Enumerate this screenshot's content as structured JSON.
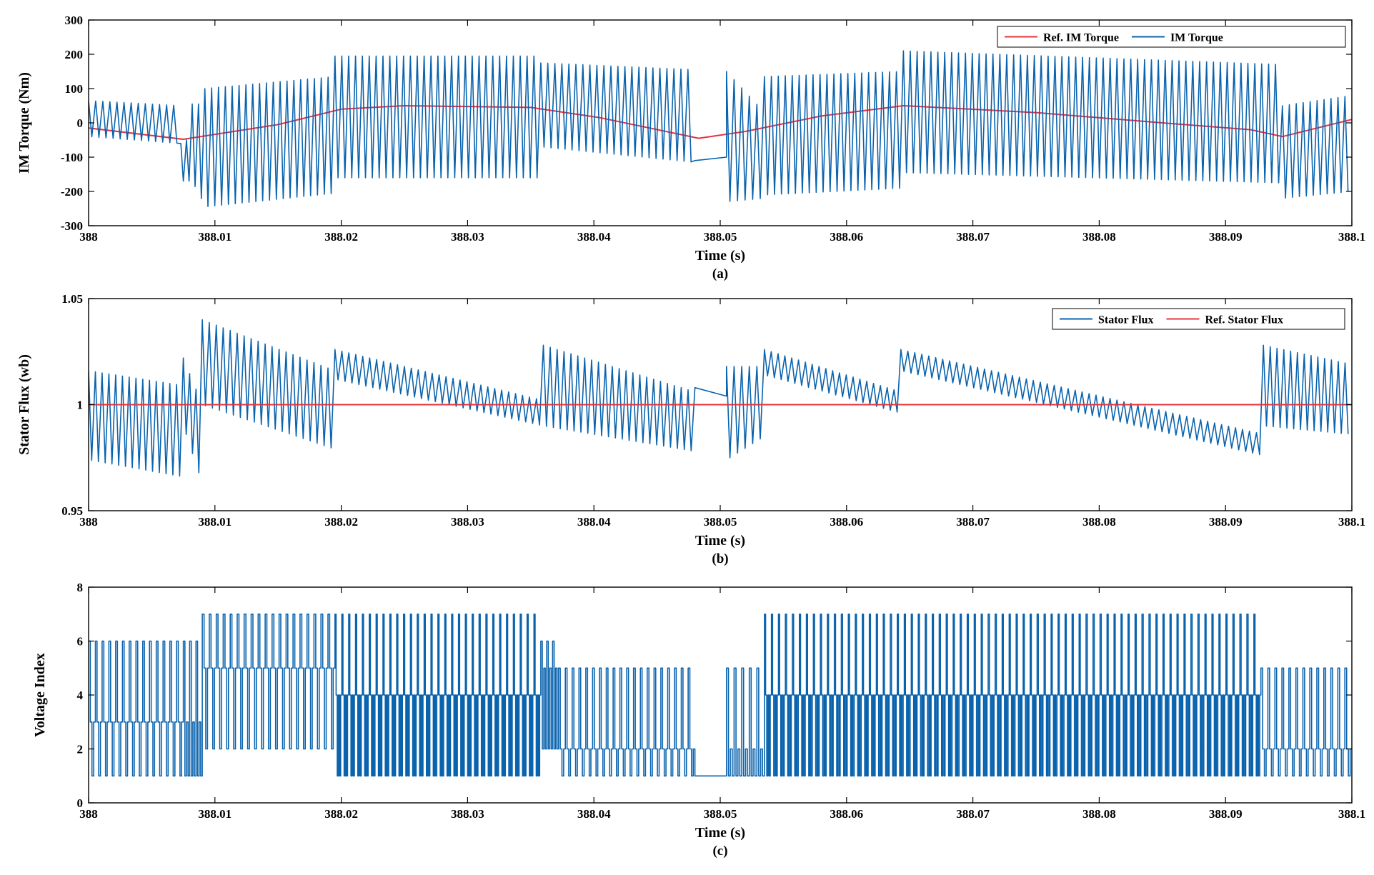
{
  "colors": {
    "blue": "#0a63ad",
    "red": "#e8323c",
    "axis": "#000000",
    "grid": "#dcdcdc"
  },
  "chart_data": [
    {
      "id": "a",
      "type": "line",
      "caption": "(a)",
      "xlabel": "Time (s)",
      "ylabel": "IM Torque (Nm)",
      "xlim": [
        388,
        388.1
      ],
      "ylim": [
        -300,
        300
      ],
      "xticks": [
        388,
        388.01,
        388.02,
        388.03,
        388.04,
        388.05,
        388.06,
        388.07,
        388.08,
        388.09,
        388.1
      ],
      "xtick_labels": [
        "388",
        "388.01",
        "388.02",
        "388.03",
        "388.04",
        "388.05",
        "388.06",
        "388.07",
        "388.08",
        "388.09",
        "388.1"
      ],
      "yticks": [
        -300,
        -200,
        -100,
        0,
        100,
        200,
        300
      ],
      "ytick_labels": [
        "-300",
        "-200",
        "-100",
        "0",
        "100",
        "200",
        "300"
      ],
      "legend": {
        "placement": "top-right",
        "entries": [
          "Ref. IM Torque",
          "IM Torque"
        ]
      },
      "series": [
        {
          "name": "Ref. IM Torque",
          "color": "#e8323c",
          "style": "line",
          "x": [
            388.0,
            388.0075,
            388.015,
            388.02,
            388.025,
            388.035,
            388.0405,
            388.0483,
            388.052,
            388.058,
            388.0645,
            388.075,
            388.085,
            388.092,
            388.0945,
            388.1
          ],
          "y": [
            -15,
            -48,
            -5,
            40,
            50,
            45,
            15,
            -45,
            -25,
            20,
            50,
            30,
            0,
            -20,
            -40,
            10
          ]
        },
        {
          "name": "IM Torque",
          "color": "#0a63ad",
          "style": "oscillation",
          "segments": [
            {
              "t0": 388.0,
              "t1": 388.0073,
              "period": 0.00055,
              "hi0": 65,
              "hi1": 50,
              "lo0": -40,
              "lo1": -60
            },
            {
              "t0": 388.0073,
              "t1": 388.0082,
              "period": 0.0006,
              "hi0": -60,
              "hi1": -40,
              "lo0": -170,
              "lo1": -170
            },
            {
              "t0": 388.0082,
              "t1": 388.0092,
              "period": 0.0006,
              "hi0": 55,
              "hi1": 55,
              "lo0": -170,
              "lo1": -240
            },
            {
              "t0": 388.0092,
              "t1": 388.0195,
              "period": 0.00055,
              "hi0": 100,
              "hi1": 135,
              "lo0": -245,
              "lo1": -205
            },
            {
              "t0": 388.0195,
              "t1": 388.0358,
              "period": 0.00055,
              "hi0": 195,
              "hi1": 195,
              "lo0": -160,
              "lo1": -160
            },
            {
              "t0": 388.0358,
              "t1": 388.048,
              "period": 0.00055,
              "hi0": 175,
              "hi1": 155,
              "lo0": -70,
              "lo1": -115
            },
            {
              "t0": 388.048,
              "t1": 388.0505,
              "period": 0.0025,
              "hi0": -110,
              "hi1": -100,
              "lo0": -110,
              "lo1": -100,
              "flat": true
            },
            {
              "t0": 388.0505,
              "t1": 388.0535,
              "period": 0.0006,
              "hi0": 150,
              "hi1": 30,
              "lo0": -230,
              "lo1": -220
            },
            {
              "t0": 388.0535,
              "t1": 388.0645,
              "period": 0.00055,
              "hi0": 135,
              "hi1": 150,
              "lo0": -210,
              "lo1": -190
            },
            {
              "t0": 388.0645,
              "t1": 388.0945,
              "period": 0.00055,
              "hi0": 210,
              "hi1": 170,
              "lo0": -145,
              "lo1": -175
            },
            {
              "t0": 388.0945,
              "t1": 388.1,
              "period": 0.00055,
              "hi0": 50,
              "hi1": 80,
              "lo0": -220,
              "lo1": -200
            }
          ]
        }
      ]
    },
    {
      "id": "b",
      "type": "line",
      "caption": "(b)",
      "xlabel": "Time (s)",
      "ylabel": "Stator Flux (wb)",
      "xlim": [
        388,
        388.1
      ],
      "ylim": [
        0.95,
        1.05
      ],
      "xticks": [
        388,
        388.01,
        388.02,
        388.03,
        388.04,
        388.05,
        388.06,
        388.07,
        388.08,
        388.09,
        388.1
      ],
      "xtick_labels": [
        "388",
        "388.01",
        "388.02",
        "388.03",
        "388.04",
        "388.05",
        "388.06",
        "388.07",
        "388.08",
        "388.09",
        "388.1"
      ],
      "yticks": [
        0.95,
        1.0,
        1.05
      ],
      "ytick_labels": [
        "0.95",
        "1",
        "1.05"
      ],
      "legend": {
        "placement": "top-right",
        "entries": [
          "Stator Flux",
          "Ref. Stator Flux"
        ]
      },
      "series": [
        {
          "name": "Stator Flux",
          "color": "#0a63ad",
          "style": "oscillation",
          "segments": [
            {
              "t0": 388.0,
              "t1": 388.0075,
              "period": 0.00055,
              "hi0": 1.016,
              "hi1": 1.009,
              "lo0": 0.974,
              "lo1": 0.966
            },
            {
              "t0": 388.0075,
              "t1": 388.009,
              "period": 0.0005,
              "hi0": 1.022,
              "hi1": 1.0,
              "lo0": 0.99,
              "lo1": 0.963
            },
            {
              "t0": 388.009,
              "t1": 388.0195,
              "period": 0.00055,
              "hi0": 1.04,
              "hi1": 1.016,
              "lo0": 1.0,
              "lo1": 0.979
            },
            {
              "t0": 388.0195,
              "t1": 388.036,
              "period": 0.00055,
              "hi0": 1.026,
              "hi1": 1.002,
              "lo0": 1.012,
              "lo1": 0.99
            },
            {
              "t0": 388.036,
              "t1": 388.048,
              "period": 0.00055,
              "hi0": 1.028,
              "hi1": 1.006,
              "lo0": 0.99,
              "lo1": 0.978
            },
            {
              "t0": 388.048,
              "t1": 388.0505,
              "period": 0.0025,
              "hi0": 1.008,
              "hi1": 1.004,
              "lo0": 1.008,
              "lo1": 1.004,
              "flat": true
            },
            {
              "t0": 388.0505,
              "t1": 388.0535,
              "period": 0.0006,
              "hi0": 1.018,
              "hi1": 1.018,
              "lo0": 0.974,
              "lo1": 0.985
            },
            {
              "t0": 388.0535,
              "t1": 388.0643,
              "period": 0.00055,
              "hi0": 1.026,
              "hi1": 1.006,
              "lo0": 1.014,
              "lo1": 0.996
            },
            {
              "t0": 388.0643,
              "t1": 388.093,
              "period": 0.00055,
              "hi0": 1.026,
              "hi1": 0.986,
              "lo0": 1.016,
              "lo1": 0.976
            },
            {
              "t0": 388.093,
              "t1": 388.1,
              "period": 0.00055,
              "hi0": 1.028,
              "hi1": 1.019,
              "lo0": 0.99,
              "lo1": 0.986
            }
          ]
        },
        {
          "name": "Ref. Stator Flux",
          "color": "#e8323c",
          "style": "line",
          "x": [
            388.0,
            388.1
          ],
          "y": [
            1.0,
            1.0
          ]
        }
      ]
    },
    {
      "id": "c",
      "type": "line",
      "caption": "(c)",
      "xlabel": "Time (s)",
      "ylabel": "Voltage Index",
      "xlim": [
        388,
        388.1
      ],
      "ylim": [
        0,
        8
      ],
      "xticks": [
        388,
        388.01,
        388.02,
        388.03,
        388.04,
        388.05,
        388.06,
        388.07,
        388.08,
        388.09,
        388.1
      ],
      "xtick_labels": [
        "388",
        "388.01",
        "388.02",
        "388.03",
        "388.04",
        "388.05",
        "388.06",
        "388.07",
        "388.08",
        "388.09",
        "388.1"
      ],
      "yticks": [
        0,
        2,
        4,
        6,
        8
      ],
      "ytick_labels": [
        "0",
        "2",
        "4",
        "6",
        "8"
      ],
      "legend": null,
      "series": [
        {
          "name": "",
          "color": "#0a63ad",
          "style": "steps",
          "segments": [
            {
              "t0": 388.0,
              "t1": 388.0075,
              "period": 0.00055,
              "levels": [
                6,
                3,
                1,
                3
              ]
            },
            {
              "t0": 388.0075,
              "t1": 388.009,
              "period": 0.0005,
              "levels": [
                6,
                1,
                3,
                1
              ]
            },
            {
              "t0": 388.009,
              "t1": 388.0195,
              "period": 0.00055,
              "levels": [
                7,
                5,
                2,
                5
              ]
            },
            {
              "t0": 388.0195,
              "t1": 388.0358,
              "period": 0.00055,
              "levels": [
                7,
                4,
                1,
                4,
                1,
                4
              ]
            },
            {
              "t0": 388.0358,
              "t1": 388.0372,
              "period": 0.0005,
              "levels": [
                6,
                2,
                5,
                2
              ]
            },
            {
              "t0": 388.0372,
              "t1": 388.048,
              "period": 0.00055,
              "levels": [
                5,
                2,
                1,
                2
              ]
            },
            {
              "t0": 388.048,
              "t1": 388.0505,
              "period": 0.0025,
              "levels": [
                1
              ]
            },
            {
              "t0": 388.0505,
              "t1": 388.0535,
              "period": 0.0006,
              "levels": [
                5,
                1,
                2,
                1
              ]
            },
            {
              "t0": 388.0535,
              "t1": 388.0928,
              "period": 0.00055,
              "levels": [
                7,
                4,
                1,
                4,
                1,
                4
              ]
            },
            {
              "t0": 388.0928,
              "t1": 388.1,
              "period": 0.00055,
              "levels": [
                5,
                2,
                1,
                2
              ]
            }
          ]
        }
      ]
    }
  ]
}
